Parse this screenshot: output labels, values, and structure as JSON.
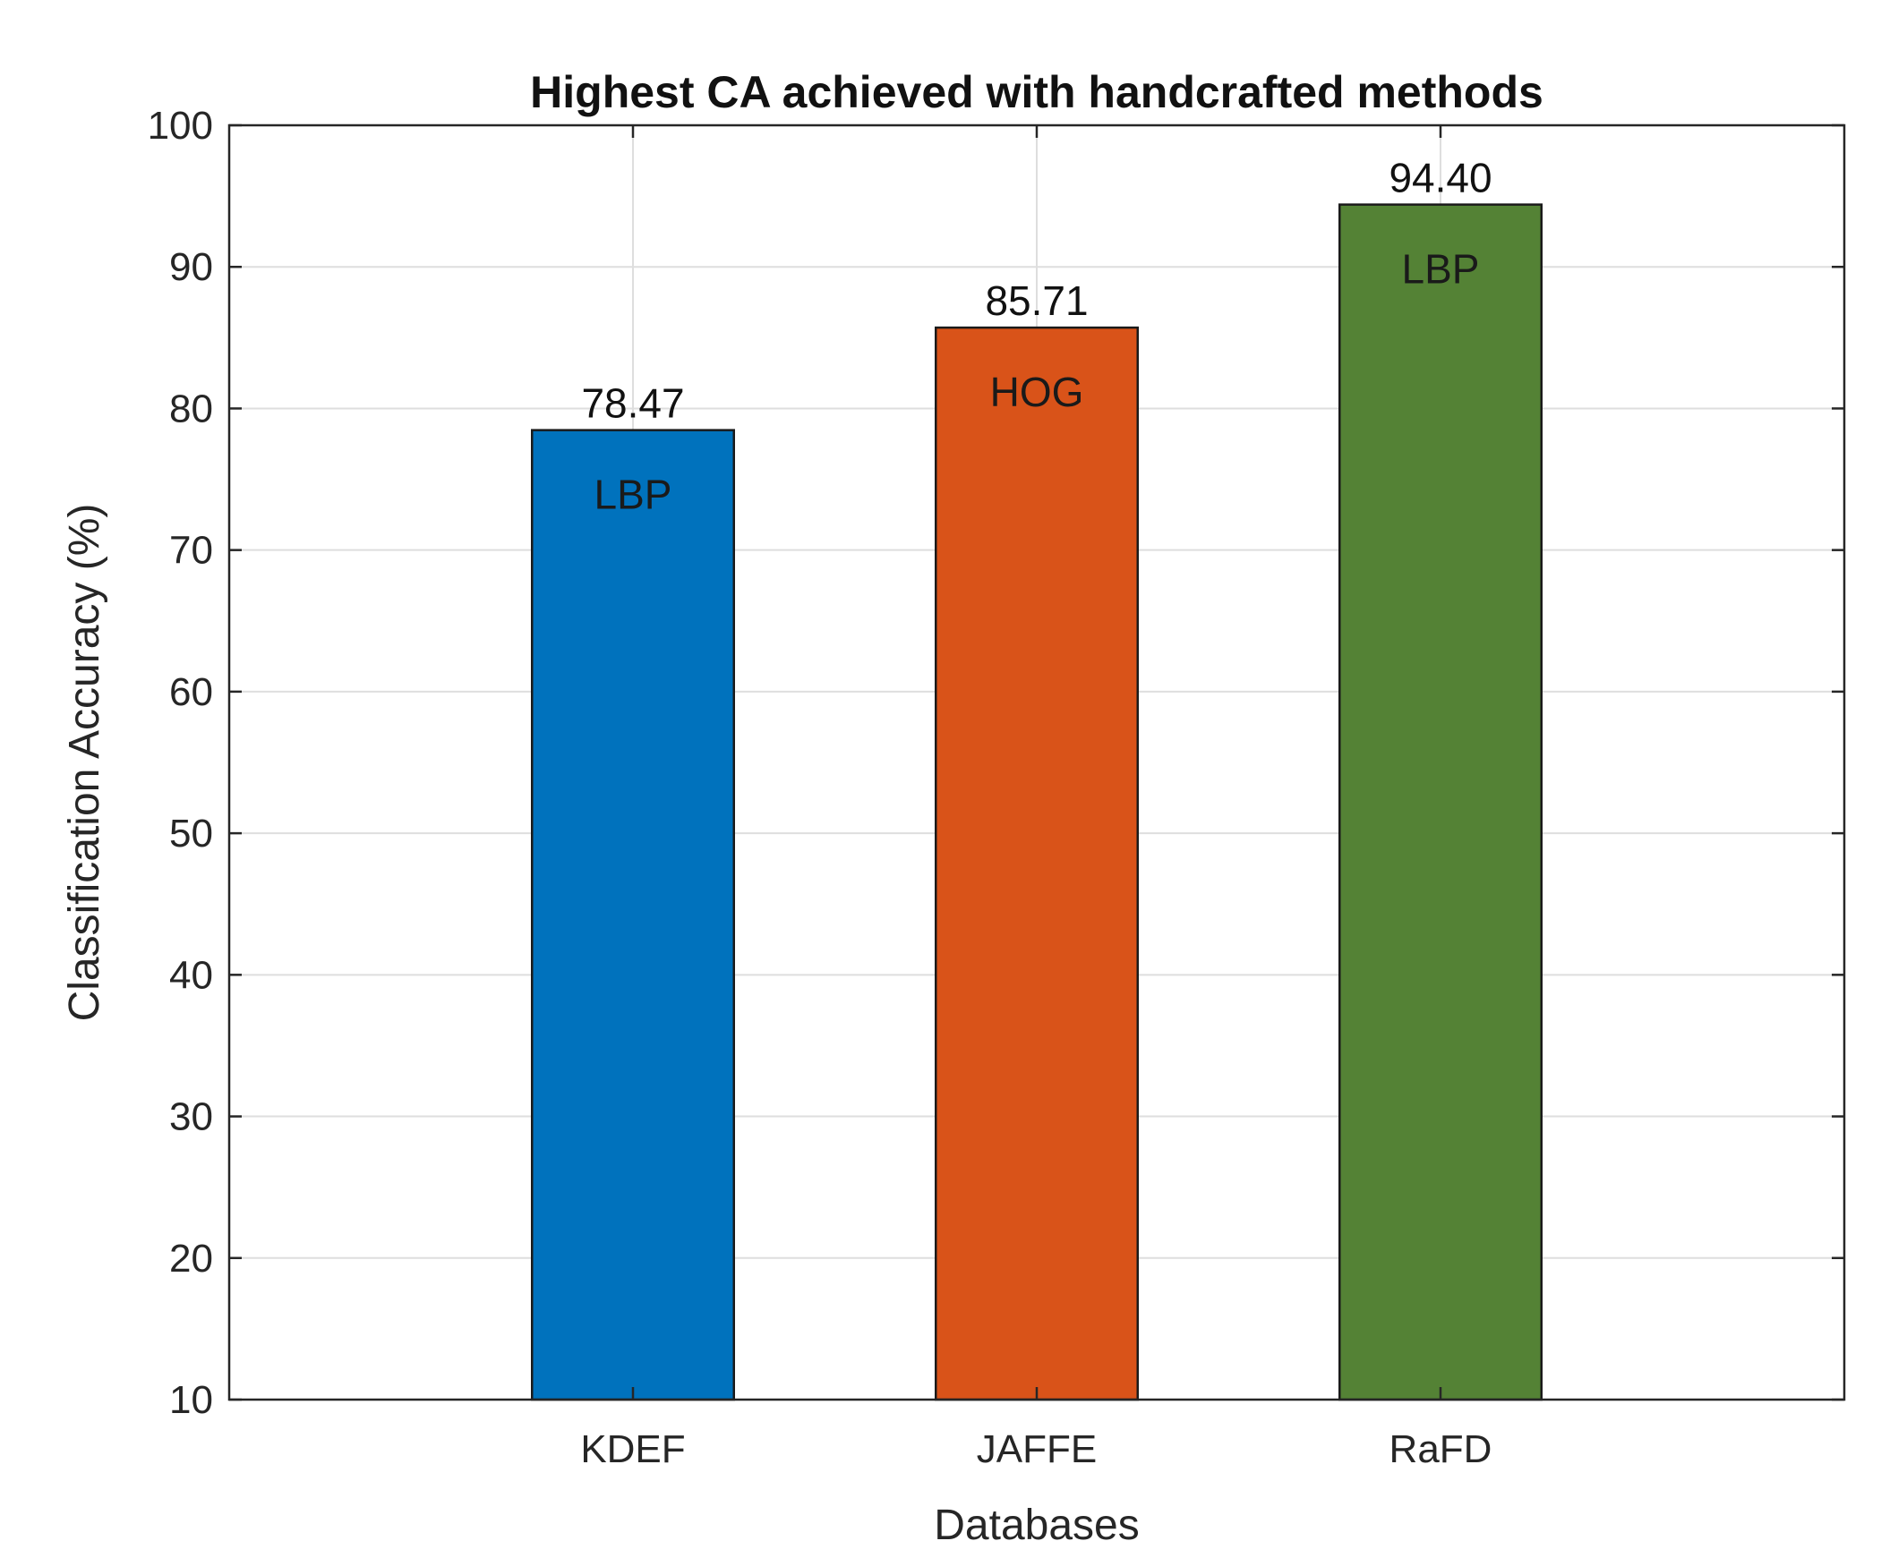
{
  "chart_data": {
    "type": "bar",
    "title": "Highest CA achieved with handcrafted methods",
    "xlabel": "Databases",
    "ylabel": "Classification Accuracy (%)",
    "ylim": [
      10,
      100
    ],
    "yticks": [
      10,
      20,
      30,
      40,
      50,
      60,
      70,
      80,
      90,
      100
    ],
    "grid": true,
    "categories": [
      "KDEF",
      "JAFFE",
      "RaFD"
    ],
    "values": [
      78.47,
      85.71,
      94.4
    ],
    "value_labels": [
      "78.47",
      "85.71",
      "94.40"
    ],
    "method_labels": [
      "LBP",
      "HOG",
      "LBP"
    ],
    "colors": [
      "#0072BD",
      "#D95319",
      "#548235"
    ]
  }
}
